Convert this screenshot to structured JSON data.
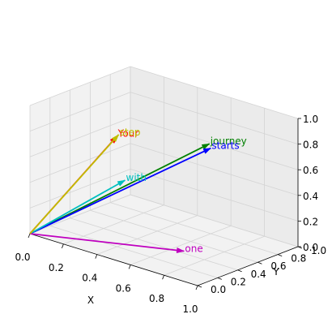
{
  "chart_data": {
    "type": "quiver3d",
    "title": "",
    "xlabel": "X",
    "ylabel": "Y",
    "zlabel": "",
    "xlim": [
      0,
      1
    ],
    "ylim": [
      0,
      1
    ],
    "zlim": [
      0,
      1
    ],
    "xticks": [
      "0.0",
      "0.2",
      "0.4",
      "0.6",
      "0.8",
      "1.0"
    ],
    "yticks": [
      "0.0",
      "0.2",
      "0.4",
      "0.6",
      "0.8",
      "1.0"
    ],
    "zticks": [
      "0.0",
      "0.2",
      "0.4",
      "0.6",
      "0.8",
      "1.0"
    ],
    "grid": true,
    "origin": [
      0,
      0,
      0
    ],
    "vectors": [
      {
        "label": "Your",
        "vector": [
          0.43,
          0.15,
          0.89
        ],
        "color": "#ff0000"
      },
      {
        "label": "journey",
        "vector": [
          0.55,
          0.87,
          0.66
        ],
        "color": "#008000"
      },
      {
        "label": "starts",
        "vector": [
          0.57,
          0.85,
          0.64
        ],
        "color": "#0000ff"
      },
      {
        "label": "with",
        "vector": [
          0.22,
          0.58,
          0.33
        ],
        "color": "#00bfbf"
      },
      {
        "label": "one",
        "vector": [
          0.77,
          0.25,
          0.1
        ],
        "color": "#bf00bf"
      },
      {
        "label": "step",
        "vector": [
          0.05,
          0.8,
          0.55
        ],
        "color": "#bfbf00"
      }
    ]
  }
}
